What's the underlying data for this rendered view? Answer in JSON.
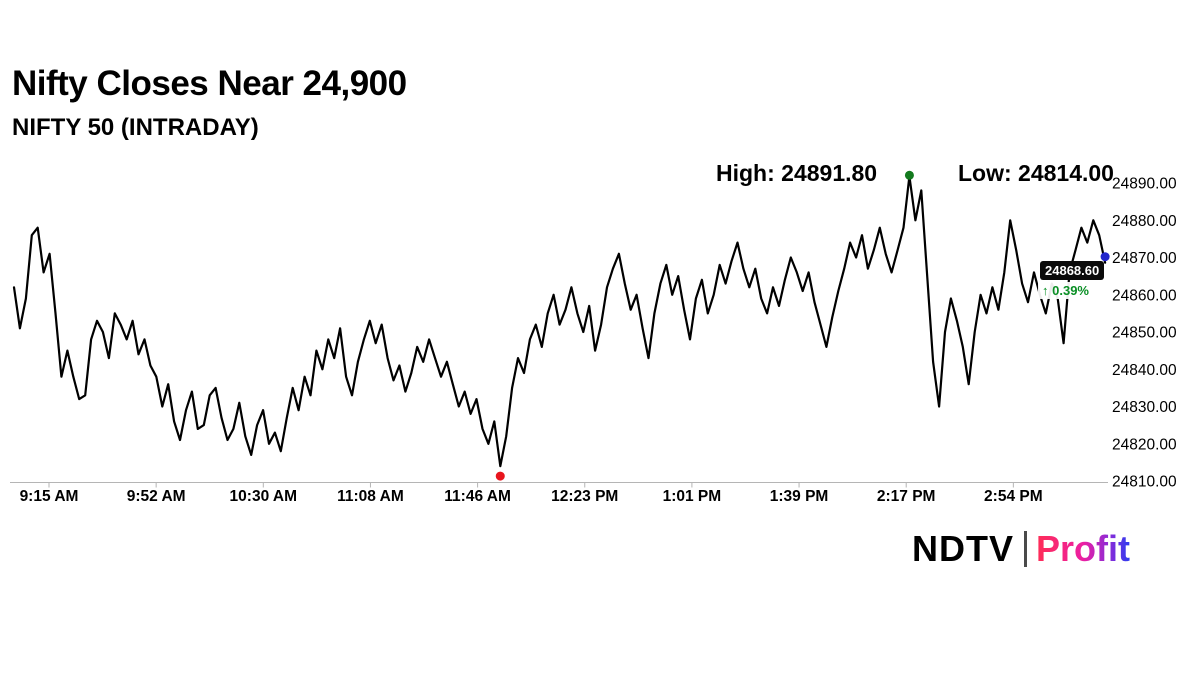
{
  "header": {
    "title": "Nifty Closes Near 24,900",
    "subtitle": "NIFTY 50 (INTRADAY)"
  },
  "annotations": {
    "high_label": "High: 24891.80",
    "low_label": "Low: 24814.00"
  },
  "last_price": {
    "value": "24868.60",
    "arrow": "↑",
    "change": "0.39%"
  },
  "logo": {
    "brand": "NDTV",
    "product": "Profit"
  },
  "colors": {
    "line": "#000000",
    "axis": "#b5b5b5",
    "tick_text": "#000000",
    "high_marker": "#137a1e",
    "low_marker": "#e8151d",
    "last_marker": "#2226cc",
    "change_green": "#0a8f25",
    "badge_bg": "#0b0b0b",
    "logo_gradient_start": "#ff2d55",
    "logo_gradient_end": "#2b3cf0"
  },
  "chart_data": {
    "type": "line",
    "title": "Nifty Closes Near 24,900",
    "subtitle": "NIFTY 50 (INTRADAY)",
    "grid": false,
    "legend": false,
    "high": 24891.8,
    "low": 24814.0,
    "last": 24868.6,
    "change_pct": 0.39,
    "ylim": [
      24810,
      24890
    ],
    "y_ticks": [
      24890,
      24880,
      24870,
      24860,
      24850,
      24840,
      24830,
      24820,
      24810
    ],
    "y_tick_labels": [
      "24890.00",
      "24880.00",
      "24870.00",
      "24860.00",
      "24850.00",
      "24840.00",
      "24830.00",
      "24820.00",
      "24810.00"
    ],
    "x_tick_labels": [
      "9:15 AM",
      "9:52 AM",
      "10:30 AM",
      "11:08 AM",
      "11:46 AM",
      "12:23 PM",
      "1:01 PM",
      "1:39 PM",
      "2:17 PM",
      "2:54 PM"
    ],
    "values": [
      24862,
      24851,
      24859,
      24876,
      24878,
      24866,
      24871,
      24855,
      24838,
      24845,
      24838,
      24832,
      24833,
      24848,
      24853,
      24850,
      24843,
      24855,
      24852,
      24848,
      24853,
      24844,
      24848,
      24841,
      24838,
      24830,
      24836,
      24826,
      24821,
      24829,
      24834,
      24824,
      24825,
      24833,
      24835,
      24827,
      24821,
      24824,
      24831,
      24822,
      24817,
      24825,
      24829,
      24820,
      24823,
      24818,
      24827,
      24835,
      24829,
      24838,
      24833,
      24845,
      24840,
      24848,
      24843,
      24851,
      24838,
      24833,
      24842,
      24848,
      24853,
      24847,
      24852,
      24843,
      24837,
      24841,
      24834,
      24839,
      24846,
      24842,
      24848,
      24843,
      24838,
      24842,
      24836,
      24830,
      24834,
      24828,
      24832,
      24824,
      24820,
      24826,
      24814,
      24822,
      24835,
      24843,
      24839,
      24848,
      24852,
      24846,
      24855,
      24860,
      24852,
      24856,
      24862,
      24855,
      24850,
      24857,
      24845,
      24852,
      24862,
      24867,
      24871,
      24863,
      24856,
      24860,
      24851,
      24843,
      24855,
      24863,
      24868,
      24860,
      24865,
      24856,
      24848,
      24859,
      24864,
      24855,
      24860,
      24868,
      24863,
      24869,
      24874,
      24867,
      24862,
      24867,
      24859,
      24855,
      24862,
      24857,
      24864,
      24870,
      24866,
      24861,
      24866,
      24858,
      24852,
      24846,
      24854,
      24861,
      24867,
      24874,
      24870,
      24876,
      24867,
      24872,
      24878,
      24871,
      24866,
      24872,
      24878,
      24891.8,
      24880,
      24888,
      24865,
      24842,
      24830,
      24850,
      24859,
      24853,
      24846,
      24836,
      24850,
      24860,
      24855,
      24862,
      24856,
      24866,
      24880,
      24872,
      24863,
      24858,
      24866,
      24860,
      24855,
      24863,
      24859,
      24847,
      24866,
      24872,
      24878,
      24874,
      24880,
      24876,
      24868.6
    ]
  }
}
